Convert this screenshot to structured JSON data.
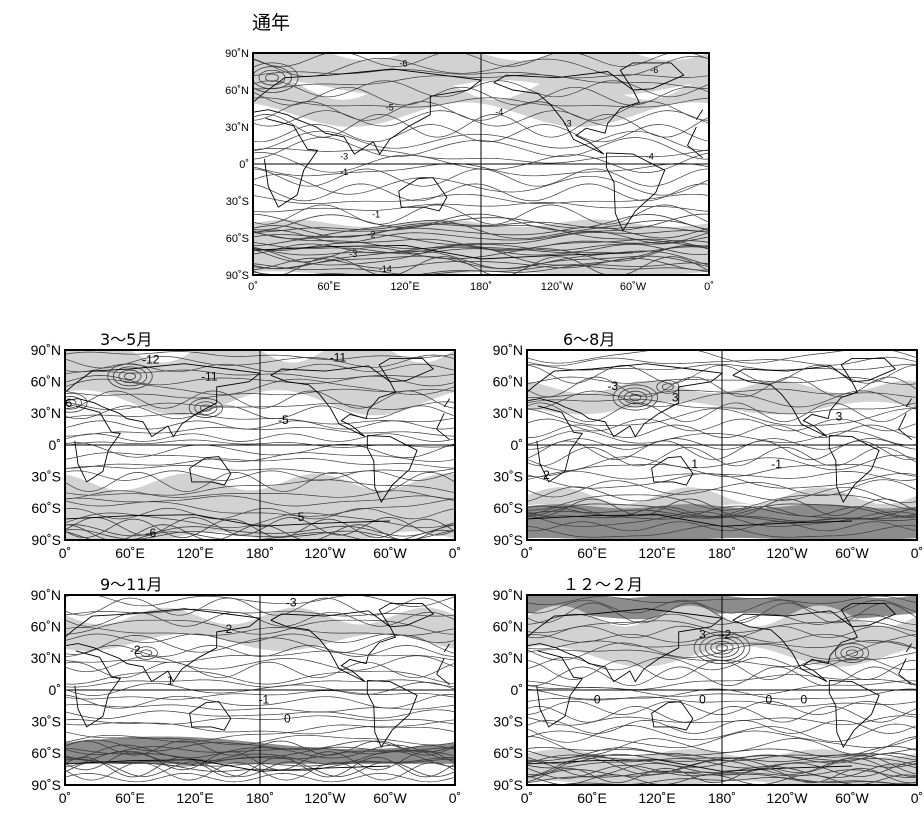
{
  "panels": [
    {
      "id": "annual",
      "title": "通年",
      "ylabels": [
        "90˚N",
        "60˚N",
        "30˚N",
        "0˚",
        "30˚S",
        "60˚S",
        "90˚S"
      ],
      "xlabels": [
        "0˚",
        "60˚E",
        "120˚E",
        "180˚",
        "120˚W",
        "60˚W",
        "0˚"
      ],
      "contour_labels": [
        "-6",
        "-6",
        "-5",
        "-4",
        "-3",
        "-4",
        "-3",
        "-1",
        "-1",
        "-2",
        "-3",
        "-14"
      ]
    },
    {
      "id": "mam",
      "title": "3～5月",
      "ylabels": [
        "90˚N",
        "60˚N",
        "30˚N",
        "0˚",
        "30˚S",
        "60˚S",
        "90˚S"
      ],
      "xlabels": [
        "0˚",
        "60˚E",
        "120˚E",
        "180˚",
        "120˚W",
        "60˚W",
        "0˚"
      ],
      "contour_labels": [
        "-12",
        "-11",
        "-11",
        "-5",
        "-5",
        "-6",
        "6"
      ]
    },
    {
      "id": "jja",
      "title": "6～8月",
      "ylabels": [
        "90˚N",
        "60˚N",
        "30˚N",
        "0˚",
        "30˚S",
        "60˚S",
        "90˚S"
      ],
      "xlabels": [
        "0˚",
        "60˚E",
        "120˚E",
        "180˚",
        "120˚W",
        "60˚W",
        "0˚"
      ],
      "contour_labels": [
        "-3",
        "3",
        "3",
        "2",
        "1",
        "-1"
      ]
    },
    {
      "id": "son",
      "title": "9～11月",
      "ylabels": [
        "90˚N",
        "60˚N",
        "30˚N",
        "0˚",
        "30˚S",
        "60˚S",
        "90˚S"
      ],
      "xlabels": [
        "0˚",
        "60˚E",
        "120˚E",
        "180˚",
        "120˚W",
        "60˚W",
        "0˚"
      ],
      "contour_labels": [
        "-3",
        "2",
        "-2",
        "1",
        "-1",
        "0"
      ]
    },
    {
      "id": "djf",
      "title": "１２～２月",
      "ylabels": [
        "90˚N",
        "60˚N",
        "30˚N",
        "0˚",
        "30˚S",
        "60˚S",
        "90˚S"
      ],
      "xlabels": [
        "0˚",
        "60˚E",
        "120˚E",
        "180˚",
        "120˚W",
        "60˚W",
        "0˚"
      ],
      "contour_labels": [
        "3",
        "-2",
        "0",
        "0",
        "0",
        "0"
      ]
    }
  ],
  "colors": {
    "shade": "#d2d2d2",
    "dark_shade": "#8c8c8c",
    "line": "#3c3c3c",
    "coast": "#000000"
  }
}
